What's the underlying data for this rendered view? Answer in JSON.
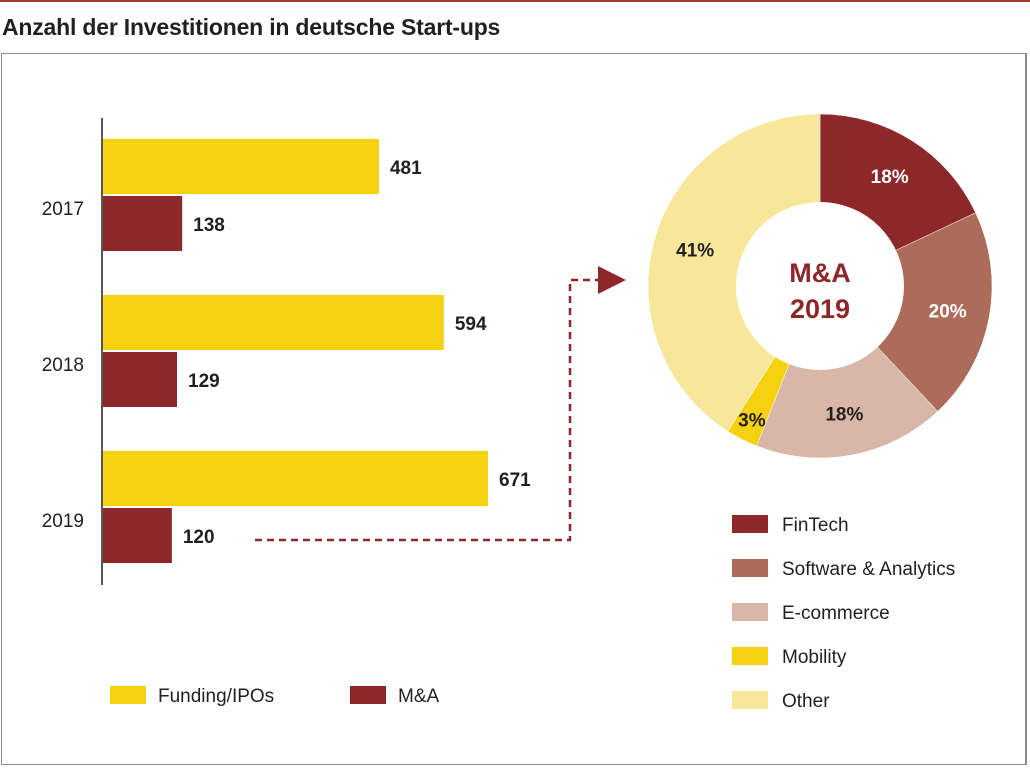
{
  "page": {
    "title": "Anzahl der Investitionen in deutsche Start-ups"
  },
  "chart_data": [
    {
      "type": "bar",
      "orientation": "horizontal",
      "categories": [
        "2017",
        "2018",
        "2019"
      ],
      "series": [
        {
          "name": "Funding/IPOs",
          "values": [
            481,
            594,
            671
          ],
          "color": "#f5d10f"
        },
        {
          "name": "M&A",
          "values": [
            138,
            129,
            120
          ],
          "color": "#8d2729"
        }
      ],
      "xlim": [
        0,
        671
      ],
      "grid": false,
      "legend_placement": "bottom"
    },
    {
      "type": "pie",
      "variant": "donut",
      "center_label": [
        "M&A",
        "2019"
      ],
      "categories": [
        "FinTech",
        "Software & Analytics",
        "E-commerce",
        "Mobility",
        "Other"
      ],
      "values": [
        18,
        20,
        18,
        3,
        41
      ],
      "labels": [
        "18%",
        "20%",
        "18%",
        "3%",
        "41%"
      ],
      "colors": [
        "#8d2729",
        "#ad6b59",
        "#d9b7a8",
        "#f5d10f",
        "#f7e79a"
      ],
      "label_colors": [
        "#ffffff",
        "#ffffff",
        "#231f20",
        "#231f20",
        "#231f20"
      ],
      "legend_placement": "bottom-right"
    }
  ]
}
